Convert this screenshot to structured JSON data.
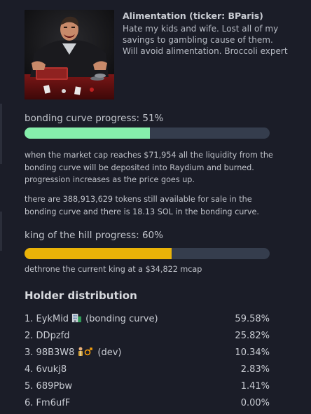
{
  "token": {
    "name_line": "Alimentation (ticker: BParis)",
    "description": "Hate my kids and wife. Lost all of my savings to gambling cause of them. Will avoid alimentation. Broccoli expert"
  },
  "bonding_curve": {
    "label": "bonding curve progress: 51%",
    "progress_percent": 51,
    "bar_color": "#86efac",
    "info_1": "when the market cap reaches $71,954 all the liquidity from the bonding curve will be deposited into Raydium and burned. progression increases as the price goes up.",
    "info_2": "there are 388,913,629 tokens still available for sale in the bonding curve and there is 18.13 SOL in the bonding curve."
  },
  "king_of_hill": {
    "label": "king of the hill progress: 60%",
    "progress_percent": 60,
    "bar_color": "#eab308",
    "info": "dethrone the current king at a $34,822 mcap"
  },
  "holders": {
    "title": "Holder distribution",
    "items": [
      {
        "rank": "1. ",
        "name": "EykMid",
        "icon": "building-icon",
        "suffix": "(bonding curve)",
        "percent": "59.58%"
      },
      {
        "rank": "2. ",
        "name": "DDpzfd",
        "icon": "",
        "suffix": "",
        "percent": "25.82%"
      },
      {
        "rank": "3. ",
        "name": "98B3W8",
        "icon": "developer-icon",
        "suffix": "(dev)",
        "percent": "10.34%"
      },
      {
        "rank": "4. ",
        "name": "6vukj8",
        "icon": "",
        "suffix": "",
        "percent": "2.83%"
      },
      {
        "rank": "5. ",
        "name": "689Pbw",
        "icon": "",
        "suffix": "",
        "percent": "1.41%"
      },
      {
        "rank": "6. ",
        "name": "Fm6ufF",
        "icon": "",
        "suffix": "",
        "percent": "0.00%"
      }
    ]
  }
}
